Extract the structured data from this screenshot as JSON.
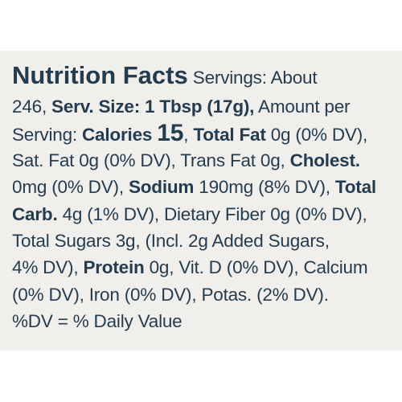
{
  "label": {
    "title": "Nutrition Facts",
    "servings_text": " Servings: About",
    "l2_a": "246, ",
    "serv_size": "Serv. Size: 1 Tbsp (17g),",
    "l2_b": " Amount per",
    "l3_a": "Serving: ",
    "calories_label": "Calories",
    "calories_value": "15",
    "l3_b": ", ",
    "total_fat_label": "Total Fat",
    "total_fat_value": " 0g (0% DV),",
    "l4_a": "Sat. Fat 0g (0% DV), Trans Fat 0g, ",
    "cholest_label": "Cholest.",
    "l5_a": "0mg (0% DV), ",
    "sodium_label": "Sodium",
    "sodium_value": " 190mg (8% DV), ",
    "total_label": "Total",
    "carb_label": "Carb.",
    "carb_value": " 4g (1% DV), Dietary Fiber 0g (0% DV),",
    "l7": "Total Sugars 3g, (Incl. 2g Added Sugars,",
    "l8_a": "4% DV), ",
    "protein_label": "Protein",
    "protein_value": " 0g, Vit. D (0% DV), Calcium",
    "l9": "(0% DV), Iron (0% DV), Potas. (2% DV).",
    "l10": "%DV = % Daily Value"
  }
}
